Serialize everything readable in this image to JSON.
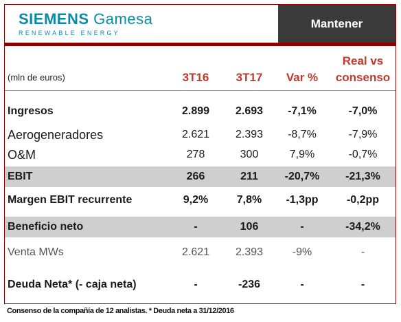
{
  "header": {
    "logo_main": "SIEMENS",
    "logo_brand": "Gamesa",
    "logo_sub": "RENEWABLE ENERGY",
    "rating": "Mantener"
  },
  "table": {
    "units_label": "(mln de euros)",
    "columns": [
      "3T16",
      "3T17",
      "Var %",
      "Real vs consenso"
    ],
    "rows": [
      {
        "label": "Ingresos",
        "values": [
          "2.899",
          "2.693",
          "-7,1%",
          "-7,0%"
        ]
      },
      {
        "label": "Aerogeneradores",
        "values": [
          "2.621",
          "2.393",
          "-8,7%",
          "-7,9%"
        ]
      },
      {
        "label": "O&M",
        "values": [
          "278",
          "300",
          "7,9%",
          "-0,7%"
        ]
      },
      {
        "label": "EBIT",
        "values": [
          "266",
          "211",
          "-20,7%",
          "-21,3%"
        ]
      },
      {
        "label": "Margen EBIT recurrente",
        "values": [
          "9,2%",
          "7,8%",
          "-1,3pp",
          "-0,2pp"
        ]
      },
      {
        "label": "Beneficio neto",
        "values": [
          "-",
          "106",
          "-",
          "-34,2%"
        ]
      },
      {
        "label": "Venta MWs",
        "values": [
          "2.621",
          "2.393",
          "-9%",
          "-"
        ]
      },
      {
        "label": "Deuda Neta* (- caja neta)",
        "values": [
          "-",
          "-236",
          "-",
          "-"
        ]
      }
    ]
  },
  "footnote": "Consenso de la compañía de 12 analistas. * Deuda neta a 31/12/2016",
  "colors": {
    "accent": "#8b0000",
    "header_red": "#c0392b",
    "brand": "#0b8aa8",
    "rating_bg": "#3a3a3a",
    "shade": "#cfcfcf"
  }
}
